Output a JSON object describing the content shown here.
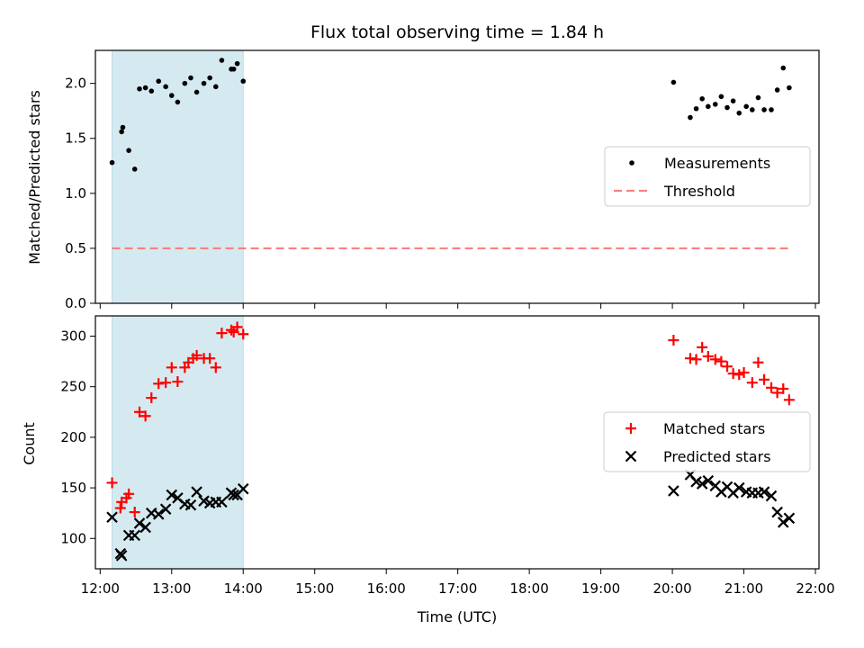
{
  "chart_data": {
    "type": "scatter",
    "title": "Flux total observing time = 1.84 h",
    "xlabel": "Time (UTC)",
    "x_tick_labels": [
      "12:00",
      "13:00",
      "14:00",
      "15:00",
      "16:00",
      "17:00",
      "18:00",
      "19:00",
      "20:00",
      "21:00",
      "22:00"
    ],
    "x_ticks": [
      "12:00",
      "13:00",
      "14:00",
      "15:00",
      "16:00",
      "17:00",
      "18:00",
      "19:00",
      "20:00",
      "21:00",
      "22:00"
    ],
    "xlim": [
      "11:56",
      "22:03"
    ],
    "highlight_span": [
      "12:10",
      "14:00"
    ],
    "highlight_color": "#d5eaf0",
    "panels": [
      {
        "ylabel": "Matched/Predicted stars",
        "ylim": [
          0,
          2.3
        ],
        "y_ticks": [
          0.0,
          0.5,
          1.0,
          1.5,
          2.0
        ],
        "y_tick_labels": [
          "0.0",
          "0.5",
          "1.0",
          "1.5",
          "2.0"
        ],
        "legend_position": "center-right",
        "series": [
          {
            "name": "Measurements",
            "marker": "dot",
            "color": "#000000",
            "points": [
              [
                "12:10",
                1.28
              ],
              [
                "12:18",
                1.56
              ],
              [
                "12:19",
                1.6
              ],
              [
                "12:24",
                1.39
              ],
              [
                "12:29",
                1.22
              ],
              [
                "12:33",
                1.95
              ],
              [
                "12:38",
                1.96
              ],
              [
                "12:43",
                1.93
              ],
              [
                "12:49",
                2.02
              ],
              [
                "12:55",
                1.97
              ],
              [
                "13:00",
                1.89
              ],
              [
                "13:05",
                1.83
              ],
              [
                "13:11",
                2.0
              ],
              [
                "13:16",
                2.05
              ],
              [
                "13:21",
                1.92
              ],
              [
                "13:27",
                2.0
              ],
              [
                "13:32",
                2.05
              ],
              [
                "13:37",
                1.97
              ],
              [
                "13:42",
                2.21
              ],
              [
                "13:50",
                2.13
              ],
              [
                "13:52",
                2.13
              ],
              [
                "13:55",
                2.18
              ],
              [
                "14:00",
                2.02
              ],
              [
                "20:01",
                2.01
              ],
              [
                "20:15",
                1.69
              ],
              [
                "20:20",
                1.77
              ],
              [
                "20:25",
                1.86
              ],
              [
                "20:30",
                1.79
              ],
              [
                "20:36",
                1.81
              ],
              [
                "20:41",
                1.88
              ],
              [
                "20:46",
                1.78
              ],
              [
                "20:51",
                1.84
              ],
              [
                "20:56",
                1.73
              ],
              [
                "21:02",
                1.79
              ],
              [
                "21:07",
                1.76
              ],
              [
                "21:12",
                1.87
              ],
              [
                "21:17",
                1.76
              ],
              [
                "21:23",
                1.76
              ],
              [
                "21:28",
                1.94
              ],
              [
                "21:33",
                2.14
              ],
              [
                "21:38",
                1.96
              ]
            ]
          },
          {
            "name": "Threshold",
            "marker": "dashed-line",
            "color": "#ff7f7f",
            "points": [
              [
                "12:10",
                0.5
              ],
              [
                "21:38",
                0.5
              ]
            ]
          }
        ]
      },
      {
        "ylabel": "Count",
        "ylim": [
          70,
          320
        ],
        "y_ticks": [
          100,
          150,
          200,
          250,
          300
        ],
        "y_tick_labels": [
          "100",
          "150",
          "200",
          "250",
          "300"
        ],
        "legend_position": "center-right",
        "series": [
          {
            "name": "Matched stars",
            "marker": "plus",
            "color": "#ff0000",
            "points": [
              [
                "12:10",
                155
              ],
              [
                "12:17",
                130
              ],
              [
                "12:18",
                136
              ],
              [
                "12:22",
                140
              ],
              [
                "12:24",
                144
              ],
              [
                "12:29",
                126
              ],
              [
                "12:33",
                225
              ],
              [
                "12:38",
                221
              ],
              [
                "12:43",
                239
              ],
              [
                "12:49",
                253
              ],
              [
                "12:55",
                254
              ],
              [
                "13:00",
                269
              ],
              [
                "13:05",
                255
              ],
              [
                "13:11",
                269
              ],
              [
                "13:14",
                274
              ],
              [
                "13:18",
                278
              ],
              [
                "13:21",
                281
              ],
              [
                "13:27",
                278
              ],
              [
                "13:32",
                278
              ],
              [
                "13:37",
                269
              ],
              [
                "13:42",
                303
              ],
              [
                "13:50",
                306
              ],
              [
                "13:52",
                304
              ],
              [
                "13:55",
                309
              ],
              [
                "14:00",
                302
              ],
              [
                "20:01",
                296
              ],
              [
                "20:15",
                278
              ],
              [
                "20:20",
                277
              ],
              [
                "20:25",
                289
              ],
              [
                "20:30",
                280
              ],
              [
                "20:36",
                277
              ],
              [
                "20:41",
                275
              ],
              [
                "20:46",
                270
              ],
              [
                "20:51",
                263
              ],
              [
                "20:56",
                262
              ],
              [
                "21:00",
                264
              ],
              [
                "21:07",
                254
              ],
              [
                "21:12",
                274
              ],
              [
                "21:17",
                257
              ],
              [
                "21:23",
                249
              ],
              [
                "21:28",
                244
              ],
              [
                "21:33",
                248
              ],
              [
                "21:38",
                237
              ]
            ]
          },
          {
            "name": "Predicted stars",
            "marker": "x",
            "color": "#000000",
            "points": [
              [
                "12:10",
                121
              ],
              [
                "12:17",
                85
              ],
              [
                "12:18",
                83
              ],
              [
                "12:24",
                103
              ],
              [
                "12:29",
                103
              ],
              [
                "12:33",
                115
              ],
              [
                "12:38",
                111
              ],
              [
                "12:43",
                125
              ],
              [
                "12:49",
                124
              ],
              [
                "12:55",
                129
              ],
              [
                "13:00",
                143
              ],
              [
                "13:05",
                140
              ],
              [
                "13:11",
                134
              ],
              [
                "13:16",
                133
              ],
              [
                "13:21",
                146
              ],
              [
                "13:27",
                137
              ],
              [
                "13:32",
                135
              ],
              [
                "13:37",
                136
              ],
              [
                "13:42",
                136
              ],
              [
                "13:50",
                145
              ],
              [
                "13:52",
                143
              ],
              [
                "13:55",
                143
              ],
              [
                "14:00",
                149
              ],
              [
                "20:01",
                147
              ],
              [
                "20:15",
                163
              ],
              [
                "20:20",
                156
              ],
              [
                "20:25",
                154
              ],
              [
                "20:30",
                157
              ],
              [
                "20:36",
                152
              ],
              [
                "20:41",
                146
              ],
              [
                "20:46",
                151
              ],
              [
                "20:51",
                145
              ],
              [
                "20:56",
                150
              ],
              [
                "21:02",
                146
              ],
              [
                "21:07",
                145
              ],
              [
                "21:12",
                145
              ],
              [
                "21:17",
                146
              ],
              [
                "21:23",
                142
              ],
              [
                "21:28",
                126
              ],
              [
                "21:33",
                116
              ],
              [
                "21:38",
                120
              ]
            ]
          }
        ]
      }
    ]
  }
}
